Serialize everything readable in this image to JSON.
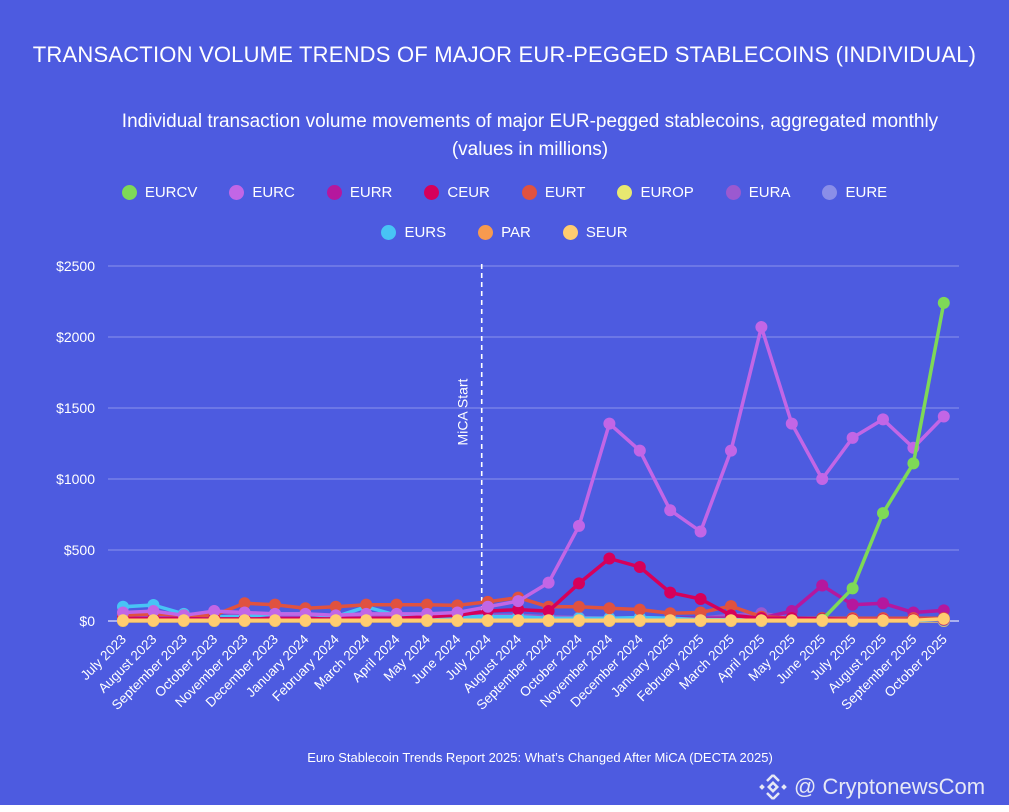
{
  "title": "TRANSACTION VOLUME TRENDS OF MAJOR EUR-PEGGED STABLECOINS (INDIVIDUAL)",
  "subtitle": "Individual transaction volume movements of major EUR-pegged stablecoins, aggregated monthly (values in millions)",
  "source": "Euro Stablecoin Trends Report 2025: What’s Changed After MiCA (DECTA 2025)",
  "watermark": "@ CryptonewsCom",
  "chart_data": {
    "type": "line",
    "title": "TRANSACTION VOLUME TRENDS OF MAJOR EUR-PEGGED STABLECOINS (INDIVIDUAL)",
    "ylim": [
      0,
      2500
    ],
    "yticks": [
      "$0",
      "$500",
      "$1000",
      "$1500",
      "$2000",
      "$2500"
    ],
    "grid": true,
    "legend_placement": "top",
    "annotation": {
      "label": "MiCA Start",
      "position_between": [
        "June 2024",
        "July 2024"
      ]
    },
    "categories": [
      "July 2023",
      "August 2023",
      "September 2023",
      "October 2023",
      "November 2023",
      "December 2023",
      "January 2024",
      "February 2024",
      "March 2024",
      "April 2024",
      "May 2024",
      "June 2024",
      "July 2024",
      "August 2024",
      "September 2024",
      "October 2024",
      "November 2024",
      "December 2024",
      "January 2025",
      "February 2025",
      "March 2025",
      "April 2025",
      "May 2025",
      "June 2025",
      "July 2025",
      "August 2025",
      "September 2025",
      "October 2025"
    ],
    "series": [
      {
        "name": "EURCV",
        "color": "#7ed957",
        "values": [
          null,
          null,
          null,
          null,
          null,
          null,
          null,
          null,
          null,
          null,
          null,
          null,
          null,
          null,
          null,
          null,
          null,
          null,
          null,
          null,
          null,
          null,
          null,
          10,
          230,
          760,
          1110,
          2240
        ]
      },
      {
        "name": "EURC",
        "color": "#c266e6",
        "values": [
          60,
          70,
          40,
          70,
          60,
          50,
          50,
          40,
          50,
          50,
          50,
          60,
          100,
          140,
          270,
          670,
          1390,
          1200,
          780,
          630,
          1200,
          2070,
          1390,
          1000,
          1290,
          1420,
          1220,
          1440
        ]
      },
      {
        "name": "EURR",
        "color": "#b5179e",
        "values": [
          20,
          20,
          20,
          20,
          20,
          20,
          20,
          20,
          20,
          20,
          20,
          20,
          20,
          20,
          20,
          20,
          20,
          20,
          20,
          20,
          20,
          20,
          70,
          250,
          115,
          125,
          60,
          75
        ]
      },
      {
        "name": "CEUR",
        "color": "#d6005a",
        "values": [
          15,
          15,
          15,
          15,
          15,
          15,
          15,
          15,
          20,
          20,
          30,
          40,
          70,
          80,
          70,
          265,
          440,
          380,
          200,
          155,
          40,
          20,
          20,
          15,
          10,
          10,
          10,
          10
        ]
      },
      {
        "name": "EURT",
        "color": "#e0523f",
        "values": [
          40,
          50,
          40,
          40,
          125,
          115,
          90,
          100,
          115,
          115,
          115,
          110,
          135,
          165,
          100,
          100,
          90,
          80,
          55,
          60,
          105,
          30,
          20,
          20,
          20,
          20,
          20,
          20
        ]
      },
      {
        "name": "EUROP",
        "color": "#e8e870",
        "values": [
          0,
          0,
          0,
          0,
          0,
          0,
          0,
          0,
          0,
          0,
          0,
          0,
          0,
          0,
          0,
          0,
          0,
          0,
          0,
          0,
          0,
          0,
          0,
          0,
          0,
          0,
          0,
          0
        ]
      },
      {
        "name": "EURA",
        "color": "#9b59d0",
        "values": [
          30,
          40,
          35,
          70,
          40,
          35,
          30,
          30,
          40,
          35,
          35,
          40,
          40,
          40,
          30,
          25,
          20,
          20,
          20,
          20,
          40,
          55,
          20,
          10,
          10,
          10,
          10,
          10
        ]
      },
      {
        "name": "EURE",
        "color": "#8a8ee8",
        "values": [
          5,
          5,
          5,
          5,
          5,
          5,
          5,
          5,
          5,
          5,
          5,
          5,
          5,
          5,
          5,
          5,
          5,
          5,
          5,
          5,
          5,
          5,
          5,
          5,
          5,
          5,
          5,
          5
        ]
      },
      {
        "name": "EURS",
        "color": "#48c4f5",
        "values": [
          100,
          113,
          50,
          30,
          30,
          50,
          50,
          30,
          100,
          40,
          30,
          30,
          30,
          30,
          20,
          20,
          20,
          25,
          20,
          10,
          10,
          5,
          5,
          5,
          5,
          5,
          5,
          5
        ]
      },
      {
        "name": "PAR",
        "color": "#f79a4f",
        "values": [
          3,
          3,
          3,
          3,
          3,
          3,
          3,
          3,
          3,
          3,
          3,
          3,
          3,
          3,
          3,
          3,
          3,
          3,
          3,
          3,
          3,
          3,
          3,
          3,
          3,
          3,
          3,
          3
        ]
      },
      {
        "name": "SEUR",
        "color": "#ffcc70",
        "values": [
          5,
          5,
          5,
          5,
          5,
          5,
          5,
          5,
          5,
          5,
          5,
          5,
          5,
          5,
          5,
          5,
          5,
          5,
          5,
          5,
          5,
          5,
          5,
          5,
          5,
          5,
          5,
          15
        ]
      }
    ]
  }
}
